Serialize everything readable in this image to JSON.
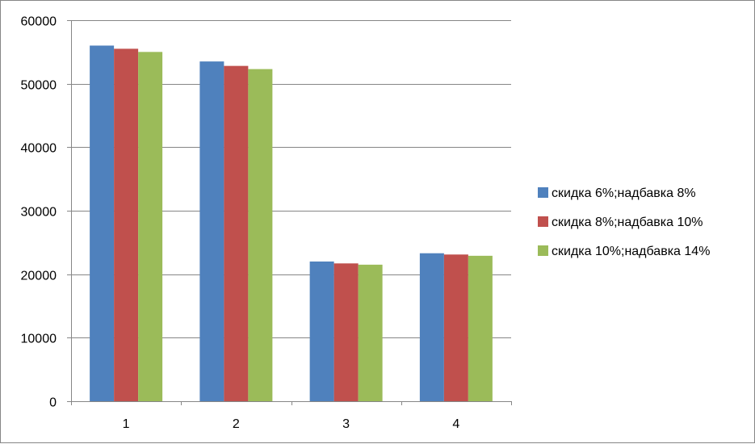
{
  "chart_data": {
    "type": "bar",
    "categories": [
      "1",
      "2",
      "3",
      "4"
    ],
    "series": [
      {
        "name": "скидка 6%;надбавка 8%",
        "color": "#4F81BD",
        "values": [
          56000,
          53500,
          22000,
          23300
        ]
      },
      {
        "name": "скидка 8%;надбавка 10%",
        "color": "#C0504D",
        "values": [
          55500,
          52800,
          21700,
          23100
        ]
      },
      {
        "name": "скидка 10%;надбавка 14%",
        "color": "#9BBB59",
        "values": [
          55000,
          52300,
          21500,
          22900
        ]
      }
    ],
    "ylim": [
      0,
      60000
    ],
    "yticks": [
      "0",
      "10000",
      "20000",
      "30000",
      "40000",
      "50000",
      "60000"
    ],
    "grid": true,
    "legend_position": "right"
  }
}
